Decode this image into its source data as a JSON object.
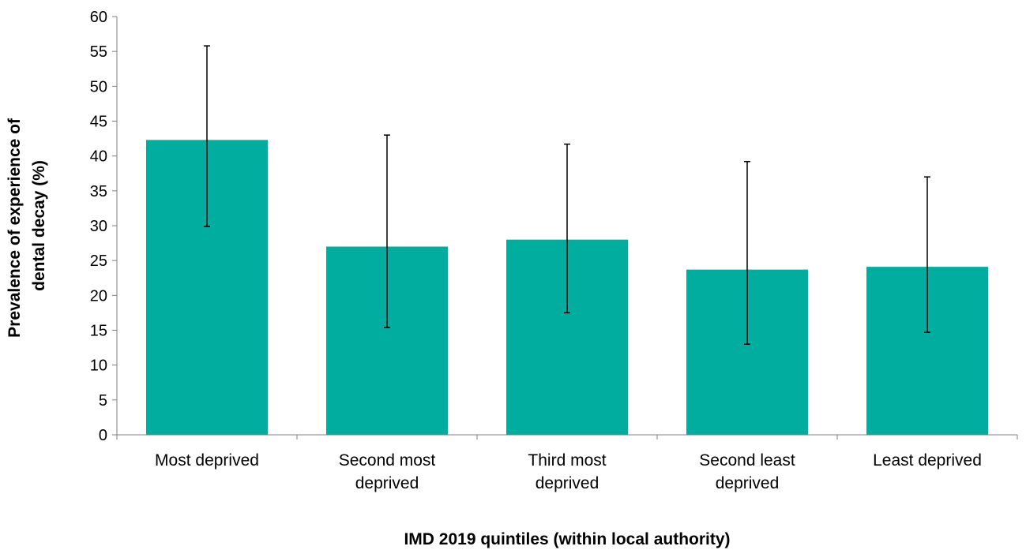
{
  "chart_data": {
    "type": "bar",
    "categories": [
      [
        "Most deprived"
      ],
      [
        "Second most",
        "deprived"
      ],
      [
        "Third most",
        "deprived"
      ],
      [
        "Second least",
        "deprived"
      ],
      [
        "Least deprived"
      ]
    ],
    "values": [
      42.3,
      27.0,
      28.0,
      23.7,
      24.1
    ],
    "error_low": [
      29.9,
      15.4,
      17.5,
      13.0,
      14.7
    ],
    "error_high": [
      55.8,
      43.0,
      41.7,
      39.2,
      37.0
    ],
    "xlabel": "IMD 2019 quintiles (within local authority)",
    "ylabel": [
      "Prevalence of experience of",
      "dental decay (%)"
    ],
    "ylim": [
      0,
      60
    ],
    "yticks": [
      0,
      5,
      10,
      15,
      20,
      25,
      30,
      35,
      40,
      45,
      50,
      55,
      60
    ],
    "grid": false,
    "legend": "none",
    "bar_color": "#00ad9f",
    "error_bar_color": "#000000"
  }
}
